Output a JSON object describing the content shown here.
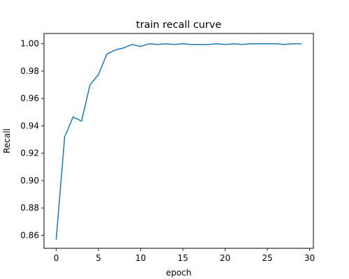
{
  "chart_data": {
    "type": "line",
    "title": "train recall curve",
    "xlabel": "epoch",
    "ylabel": "Recall",
    "xlim": [
      -1.45,
      30.45
    ],
    "ylim": [
      0.8505,
      1.0075
    ],
    "xticks": [
      0,
      5,
      10,
      15,
      20,
      25,
      30
    ],
    "yticks": [
      0.86,
      0.88,
      0.9,
      0.92,
      0.94,
      0.96,
      0.98,
      1.0
    ],
    "xtick_labels": [
      "0",
      "5",
      "10",
      "15",
      "20",
      "25",
      "30"
    ],
    "ytick_labels": [
      "0.86",
      "0.88",
      "0.90",
      "0.92",
      "0.94",
      "0.96",
      "0.98",
      "1.00"
    ],
    "grid": false,
    "series": [
      {
        "color": "#1f77b4",
        "x": [
          0,
          1,
          2,
          3,
          4,
          5,
          6,
          7,
          8,
          9,
          10,
          11,
          12,
          13,
          14,
          15,
          16,
          17,
          18,
          19,
          20,
          21,
          22,
          23,
          24,
          25,
          26,
          27,
          28,
          29
        ],
        "y": [
          0.857,
          0.932,
          0.9465,
          0.9435,
          0.97,
          0.9775,
          0.9925,
          0.9955,
          0.997,
          0.9995,
          0.998,
          1.0,
          0.9995,
          1.0,
          0.9995,
          1.0,
          0.9995,
          0.9995,
          0.9995,
          1.0,
          0.9995,
          1.0,
          0.9995,
          1.0,
          1.0,
          1.0,
          1.0,
          0.9995,
          1.0,
          1.0
        ]
      }
    ]
  }
}
